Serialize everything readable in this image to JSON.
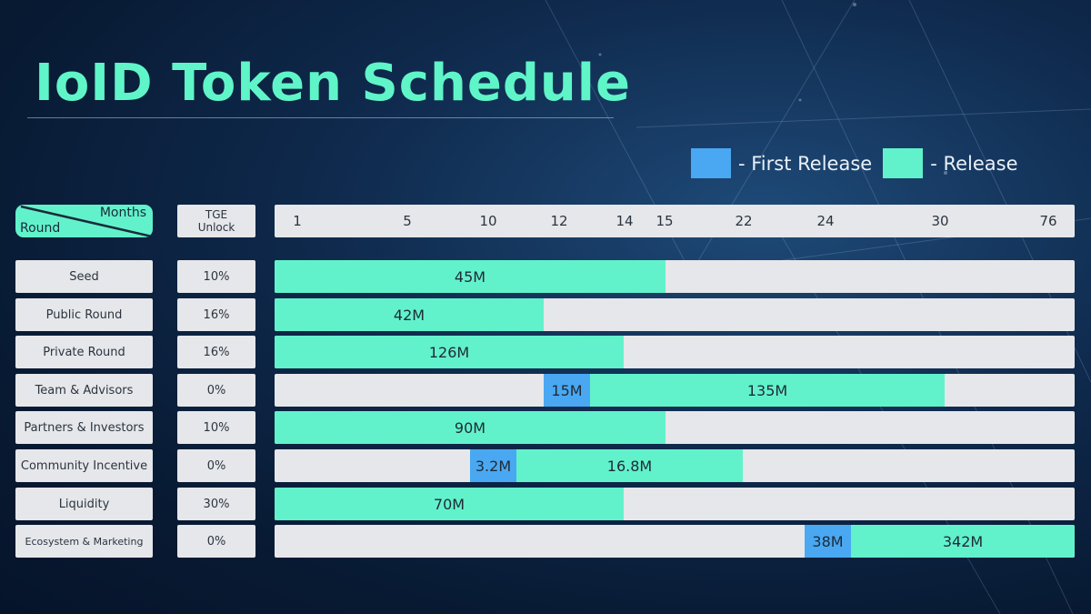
{
  "header": {
    "title": "IoID Token Schedule"
  },
  "legend": [
    {
      "label": "- First Release",
      "color": "#4aa8f2"
    },
    {
      "label": "- Release",
      "color": "#62f2cb"
    }
  ],
  "table_head": {
    "months_label": "Months",
    "round_label": "Round",
    "tge_label_1": "TGE",
    "tge_label_2": "Unlock"
  },
  "chart_data": {
    "type": "bar",
    "title": "IoID Token Schedule",
    "x_ticks": [
      "1",
      "5",
      "10",
      "12",
      "14",
      "15",
      "22",
      "24",
      "30",
      "76"
    ],
    "colors": {
      "first_release": "#4aa8f2",
      "release": "#62f2cb",
      "track": "#e6e7ea"
    },
    "rows": [
      {
        "round": "Seed",
        "tge": "10%",
        "segments": [
          {
            "kind": "release",
            "start": "1",
            "end": "15",
            "label": "45M"
          }
        ]
      },
      {
        "round": "Public Round",
        "tge": "16%",
        "segments": [
          {
            "kind": "release",
            "start": "1",
            "end": "12",
            "label": "42M"
          }
        ]
      },
      {
        "round": "Private Round",
        "tge": "16%",
        "segments": [
          {
            "kind": "release",
            "start": "1",
            "end": "14",
            "label": "126M"
          }
        ]
      },
      {
        "round": "Team & Advisors",
        "tge": "0%",
        "segments": [
          {
            "kind": "first_release",
            "start": "12",
            "end": "12",
            "label": "15M"
          },
          {
            "kind": "release",
            "start": "12",
            "end": "24",
            "label": "135M"
          }
        ]
      },
      {
        "round": "Partners & Investors",
        "tge": "10%",
        "segments": [
          {
            "kind": "release",
            "start": "1",
            "end": "15",
            "label": "90M"
          }
        ]
      },
      {
        "round": "Community Incentive",
        "tge": "0%",
        "segments": [
          {
            "kind": "first_release",
            "start": "10",
            "end": "10",
            "label": "3.2M"
          },
          {
            "kind": "release",
            "start": "10",
            "end": "22",
            "label": "16.8M"
          }
        ]
      },
      {
        "round": "Liquidity",
        "tge": "30%",
        "segments": [
          {
            "kind": "release",
            "start": "1",
            "end": "14",
            "label": "70M"
          }
        ]
      },
      {
        "round": "Ecosystem & Marketing",
        "tge": "0%",
        "segments": [
          {
            "kind": "first_release",
            "start": "24",
            "end": "24",
            "label": "38M"
          },
          {
            "kind": "release",
            "start": "24",
            "end": "76",
            "label": "342M"
          }
        ]
      }
    ]
  }
}
